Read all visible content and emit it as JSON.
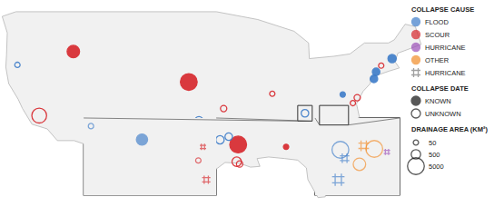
{
  "chart_data": {
    "type": "scatter",
    "tick_labels": false,
    "causes": [
      {
        "name": "FLOOD",
        "color": "#3d7cc9"
      },
      {
        "name": "SCOUR",
        "color": "#d7262b"
      },
      {
        "name": "HURRICANE",
        "color": "#9b4fb8"
      },
      {
        "name": "OTHER",
        "color": "#f28c28"
      }
    ],
    "hurricane_icon": {
      "name": "HURRICANE",
      "marker": "hash-open",
      "color": "#777777"
    },
    "legend_titles": [
      "COLLAPSE CAUSE",
      "COLLAPSE DATE",
      "DRAINAGE AREA (KM²)"
    ],
    "dates": [
      {
        "name": "KNOWN",
        "known": true
      },
      {
        "name": "UNKNOWN",
        "known": false
      }
    ],
    "size_legend": [
      50,
      500,
      5000
    ],
    "main": {
      "xlim": [
        -125,
        -66
      ],
      "ylim": [
        24,
        50.5
      ],
      "points": [
        {
          "lon": -114.9,
          "lat": 43.9,
          "cause": "SCOUR",
          "known": true,
          "area": 1500
        },
        {
          "lon": -122.6,
          "lat": 42.2,
          "cause": "FLOOD",
          "known": false,
          "area": 50
        },
        {
          "lon": -119.6,
          "lat": 35.7,
          "cause": "SCOUR",
          "known": false,
          "area": 3000
        },
        {
          "lon": -99.0,
          "lat": 40.0,
          "cause": "SCOUR",
          "known": true,
          "area": 5000
        },
        {
          "lon": -97.6,
          "lat": 35.0,
          "cause": "FLOOD",
          "known": false,
          "area": 400
        },
        {
          "lon": -94.2,
          "lat": 36.6,
          "cause": "SCOUR",
          "known": false,
          "area": 100
        },
        {
          "lon": -92.2,
          "lat": 32.0,
          "cause": "SCOUR",
          "known": true,
          "area": 5000
        },
        {
          "lon": -94.7,
          "lat": 32.6,
          "cause": "FLOOD",
          "known": false,
          "area": 300
        },
        {
          "lon": -93.5,
          "lat": 33.0,
          "cause": "FLOOD",
          "known": false,
          "area": 200
        },
        {
          "lon": -92.4,
          "lat": 29.8,
          "cause": "SCOUR",
          "known": false,
          "area": 500
        },
        {
          "lon": -92.0,
          "lat": 29.5,
          "cause": "SCOUR",
          "known": false,
          "area": 100
        },
        {
          "lon": -85.6,
          "lat": 31.7,
          "cause": "SCOUR",
          "known": true,
          "area": 50
        },
        {
          "lon": -87.5,
          "lat": 38.5,
          "cause": "SCOUR",
          "known": false,
          "area": 50
        },
        {
          "lon": -83.0,
          "lat": 36.0,
          "cause": "FLOOD",
          "known": false,
          "area": 200
        },
        {
          "lon": -77.8,
          "lat": 38.4,
          "cause": "FLOOD",
          "known": true,
          "area": 50
        },
        {
          "lon": -76.4,
          "lat": 37.3,
          "cause": "SCOUR",
          "known": false,
          "area": 50
        },
        {
          "lon": -75.8,
          "lat": 38.0,
          "cause": "SCOUR",
          "known": false,
          "area": 100
        },
        {
          "lon": -73.5,
          "lat": 40.4,
          "cause": "FLOOD",
          "known": true,
          "area": 200
        },
        {
          "lon": -73.2,
          "lat": 41.3,
          "cause": "FLOOD",
          "known": true,
          "area": 200
        },
        {
          "lon": -72.5,
          "lat": 42.1,
          "cause": "SCOUR",
          "known": false,
          "area": 50
        },
        {
          "lon": -71.0,
          "lat": 43.0,
          "cause": "FLOOD",
          "known": true,
          "area": 300
        }
      ]
    },
    "insets": [
      {
        "xlim": [
          -84,
          -82
        ],
        "ylim": [
          35,
          37
        ],
        "points": [
          {
            "lon": -83.89,
            "lat": 36.79,
            "cause": "FLOOD",
            "known": false,
            "area": 50
          },
          {
            "lon": -83.12,
            "lat": 36.44,
            "cause": "FLOOD",
            "known": true,
            "area": 1000
          },
          {
            "lon": -82.2,
            "lat": 36.25,
            "cause": "SCOUR",
            "known": true,
            "area": 100,
            "icon": true
          },
          {
            "lon": -82.27,
            "lat": 35.9,
            "cause": "SCOUR",
            "known": false,
            "area": 50
          },
          {
            "lon": -82.15,
            "lat": 35.4,
            "cause": "SCOUR",
            "known": true,
            "area": 300,
            "icon": true
          }
        ]
      },
      {
        "xlim": [
          -81,
          -77
        ],
        "ylim": [
          34.5,
          37
        ],
        "points": [
          {
            "lon": -79.8,
            "lat": 35.97,
            "cause": "FLOOD",
            "known": false,
            "area": 5000
          },
          {
            "lon": -79.6,
            "lat": 35.7,
            "cause": "FLOOD",
            "known": true,
            "area": 500,
            "icon": true
          },
          {
            "lon": -79.9,
            "lat": 35.0,
            "cause": "FLOOD",
            "known": true,
            "area": 1500,
            "icon": true
          },
          {
            "lon": -78.7,
            "lat": 36.1,
            "cause": "OTHER",
            "known": true,
            "area": 800,
            "icon": true
          },
          {
            "lon": -78.2,
            "lat": 36.0,
            "cause": "OTHER",
            "known": false,
            "area": 5000
          },
          {
            "lon": -78.9,
            "lat": 35.5,
            "cause": "OTHER",
            "known": false,
            "area": 1500
          },
          {
            "lon": -77.6,
            "lat": 35.9,
            "cause": "HURRICANE",
            "known": true,
            "area": 100,
            "icon": true
          }
        ]
      }
    ]
  }
}
